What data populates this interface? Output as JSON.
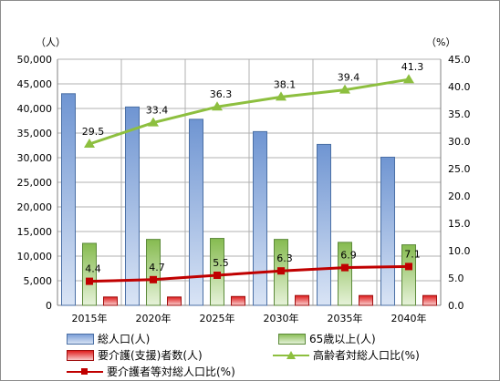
{
  "chart_data": {
    "type": "bar",
    "categories": [
      "2015年",
      "2020年",
      "2025年",
      "2030年",
      "2035年",
      "2040年"
    ],
    "series": [
      {
        "name": "総人口(人)",
        "kind": "bar",
        "axis": "left",
        "color": "#7da0d8",
        "values": [
          43000,
          40300,
          37800,
          35300,
          32700,
          30100
        ]
      },
      {
        "name": "65歳以上(人)",
        "kind": "bar",
        "axis": "left",
        "color": "#8dbf5a",
        "values": [
          12600,
          13400,
          13600,
          13400,
          12800,
          12300
        ]
      },
      {
        "name": "要介護(支援)者数(人)",
        "kind": "bar",
        "axis": "left",
        "color": "#e02020",
        "values": [
          1700,
          1700,
          1800,
          2000,
          2000,
          2000
        ]
      },
      {
        "name": "高齢者対総人口比(%)",
        "kind": "line",
        "axis": "right",
        "color": "#8dbf3f",
        "marker": "triangle",
        "values": [
          29.5,
          33.4,
          36.3,
          38.1,
          39.4,
          41.3
        ],
        "labels": [
          "29.5",
          "33.4",
          "36.3",
          "38.1",
          "39.4",
          "41.3"
        ]
      },
      {
        "name": "要介護者等対総人口比(%)",
        "kind": "line",
        "axis": "right",
        "color": "#c00000",
        "marker": "square",
        "values": [
          4.4,
          4.7,
          5.5,
          6.3,
          6.9,
          7.1
        ],
        "labels": [
          "4.4",
          "4.7",
          "5.5",
          "6.3",
          "6.9",
          "7.1"
        ]
      }
    ],
    "y_left": {
      "unit": "（人）",
      "ylim": [
        0,
        50000
      ],
      "step": 5000,
      "ticks": [
        "0",
        "5,000",
        "10,000",
        "15,000",
        "20,000",
        "25,000",
        "30,000",
        "35,000",
        "40,000",
        "45,000",
        "50,000"
      ]
    },
    "y_right": {
      "unit": "（%）",
      "ylim": [
        0,
        45
      ],
      "step": 5,
      "ticks": [
        "0.0",
        "5.0",
        "10.0",
        "15.0",
        "20.0",
        "25.0",
        "30.0",
        "35.0",
        "40.0",
        "45.0"
      ]
    },
    "grid": true,
    "legend_position": "bottom"
  }
}
